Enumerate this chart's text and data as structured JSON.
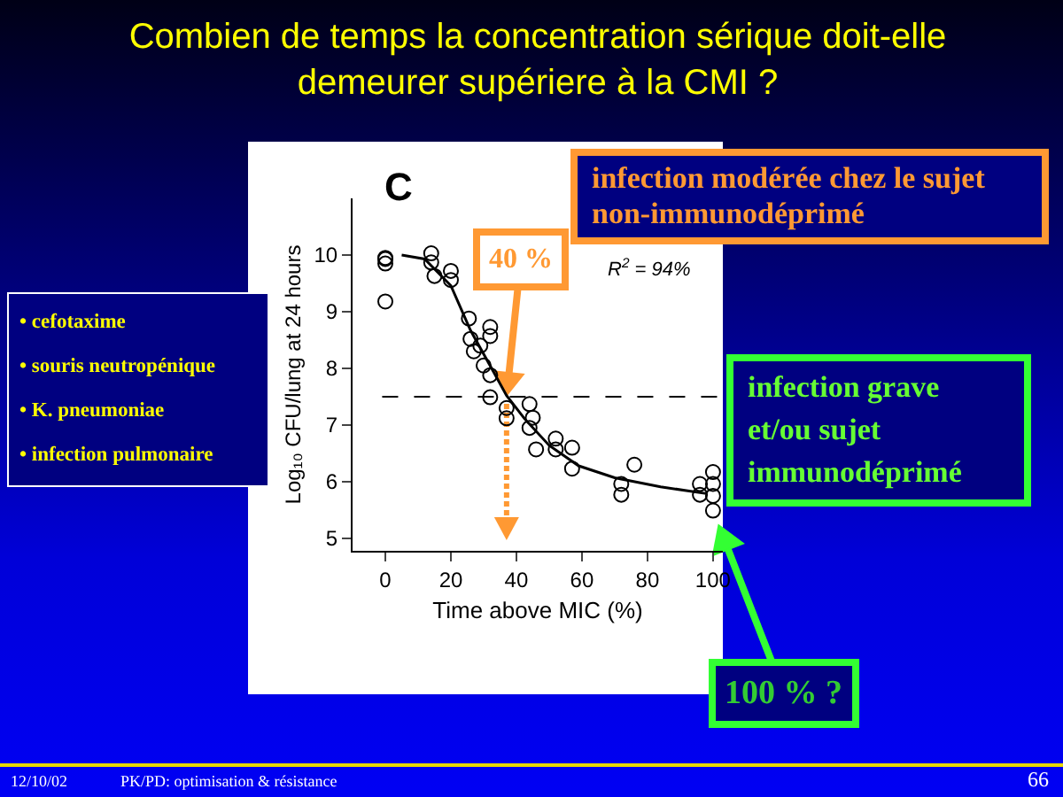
{
  "chart_data": {
    "type": "scatter",
    "title": "Combien de temps la concentration sérique doit-elle\ndemeurer supériere à la CMI ?",
    "xlabel": "Time above MIC (%)",
    "ylabel": "Log₁₀ CFU/lung at 24 hours",
    "xlim": [
      -10,
      103
    ],
    "xticks": [
      0,
      20,
      40,
      60,
      80,
      100
    ],
    "ylim": [
      4.78,
      11
    ],
    "yticks": [
      5,
      6,
      7,
      8,
      9,
      10
    ],
    "grid": false,
    "marker": "circle",
    "series": [
      {
        "color": "#000000",
        "x": [
          0,
          0,
          0,
          0,
          14,
          14,
          15,
          20,
          20,
          25.5,
          26,
          27,
          29,
          30,
          32,
          32,
          32,
          32,
          37,
          37,
          44,
          45,
          44,
          46,
          52,
          52,
          57,
          57,
          72,
          72,
          76,
          96,
          96,
          100,
          100,
          100,
          100
        ],
        "values": [
          9.93,
          9.85,
          9.95,
          9.18,
          10.03,
          9.87,
          9.63,
          9.72,
          9.56,
          8.88,
          8.52,
          8.3,
          8.4,
          8.05,
          8.73,
          8.57,
          7.88,
          7.49,
          7.3,
          7.12,
          7.37,
          7.13,
          6.95,
          6.57,
          6.76,
          6.57,
          6.6,
          6.23,
          5.96,
          5.77,
          6.3,
          5.96,
          5.77,
          6.17,
          5.96,
          5.75,
          5.49
        ]
      },
      {
        "type": "line",
        "color": "#000000",
        "marker": "none",
        "x": [
          5,
          12,
          20,
          26,
          33,
          37,
          42.5,
          50,
          59,
          70,
          84,
          98
        ],
        "values": [
          10,
          9.93,
          9.46,
          8.67,
          7.94,
          7.52,
          7.11,
          6.64,
          6.28,
          6.07,
          5.91,
          5.79
        ]
      }
    ],
    "ref_lines": [
      {
        "axis": "y",
        "value": 7.5,
        "line_style": "dashed",
        "color": "#000000"
      }
    ],
    "annotations": [
      "C",
      "R$^{2}$ = 94%",
      {
        "text": "40 %",
        "x": 37,
        "y": 7.5
      },
      "infection modérée chez le sujet non-immunodéprimé",
      "• cefotaxime\n• souris neutropénique\n• K. pneumoniae\n• infection pulmonaire",
      "infection grave et/ou sujet immunodéprimé",
      {
        "text": "100 % ?",
        "x": 100,
        "y": 5.49
      },
      "12/10/02",
      "PK/PD: optimisation & résistance",
      "66"
    ]
  }
}
